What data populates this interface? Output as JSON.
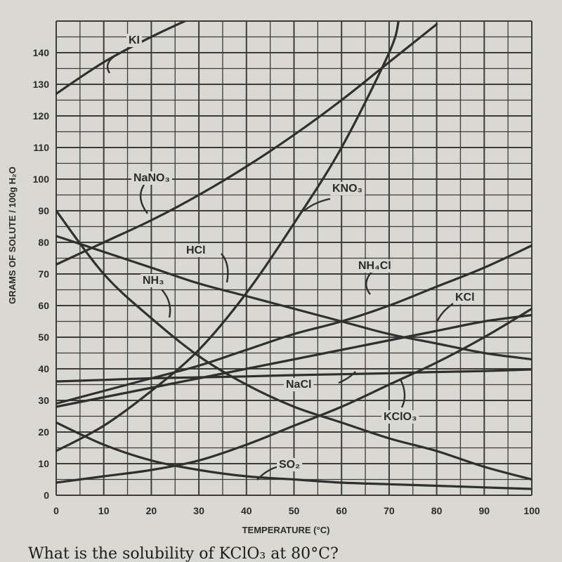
{
  "chart_data": {
    "type": "line",
    "title": "",
    "xlabel": "TEMPERATURE (°C)",
    "ylabel": "GRAMS OF SOLUTE / 100g H₂O",
    "xlim": [
      0,
      100
    ],
    "ylim": [
      0,
      150
    ],
    "grid": true,
    "x_ticks": [
      "0",
      "10",
      "20",
      "30",
      "40",
      "50",
      "60",
      "70",
      "80",
      "90",
      "100"
    ],
    "y_ticks": [
      "0",
      "10",
      "20",
      "30",
      "40",
      "50",
      "60",
      "70",
      "80",
      "90",
      "100",
      "110",
      "120",
      "130",
      "140"
    ],
    "series": [
      {
        "name": "KI",
        "x": [
          0,
          10,
          20,
          30
        ],
        "y": [
          127,
          137,
          145,
          152
        ]
      },
      {
        "name": "NaNO3",
        "x": [
          0,
          10,
          20,
          30,
          40,
          50,
          60,
          70,
          80
        ],
        "y": [
          73,
          80,
          87,
          95,
          104,
          114,
          125,
          137,
          149
        ]
      },
      {
        "name": "KNO3",
        "x": [
          0,
          10,
          20,
          30,
          40,
          50,
          60,
          70,
          72
        ],
        "y": [
          14,
          22,
          33,
          46,
          64,
          86,
          110,
          140,
          150
        ]
      },
      {
        "name": "HCl",
        "x": [
          0,
          10,
          20,
          30,
          40,
          50,
          60,
          70,
          80,
          90,
          100
        ],
        "y": [
          82,
          77,
          72,
          67,
          63,
          59,
          55,
          51,
          48,
          45,
          43
        ]
      },
      {
        "name": "NH4Cl",
        "x": [
          0,
          10,
          20,
          30,
          40,
          50,
          60,
          70,
          80,
          90,
          100
        ],
        "y": [
          29,
          33,
          37,
          41,
          46,
          51,
          55,
          60,
          66,
          72,
          79
        ]
      },
      {
        "name": "NH3",
        "x": [
          0,
          10,
          20,
          30,
          40,
          50,
          60,
          70,
          80,
          90,
          100
        ],
        "y": [
          90,
          70,
          56,
          44,
          35,
          28,
          23,
          18,
          14,
          9,
          5
        ]
      },
      {
        "name": "KCl",
        "x": [
          0,
          10,
          20,
          30,
          40,
          50,
          60,
          70,
          80,
          90,
          100
        ],
        "y": [
          28,
          31,
          34,
          37,
          40,
          43,
          46,
          49,
          52,
          55,
          57
        ]
      },
      {
        "name": "NaCl",
        "x": [
          0,
          10,
          20,
          30,
          40,
          50,
          60,
          70,
          80,
          90,
          100
        ],
        "y": [
          36,
          36.5,
          37,
          37.3,
          37.6,
          38,
          38.3,
          38.6,
          39,
          39.3,
          39.8
        ]
      },
      {
        "name": "KClO3",
        "x": [
          0,
          10,
          20,
          30,
          40,
          50,
          60,
          70,
          80,
          90,
          100
        ],
        "y": [
          4,
          6,
          8,
          11,
          16,
          22,
          28,
          35,
          42,
          50,
          59
        ]
      },
      {
        "name": "SO2",
        "x": [
          0,
          10,
          20,
          30,
          40,
          50,
          60,
          70,
          80,
          90,
          100
        ],
        "y": [
          23,
          16,
          11,
          8,
          6,
          5,
          4,
          3.5,
          3,
          2.5,
          2
        ]
      }
    ]
  },
  "labels": {
    "KI": "KI",
    "NaNO3": "NaNO₃",
    "KNO3": "KNO₃",
    "HCl": "HCl",
    "NH4Cl": "NH₄Cl",
    "NH3": "NH₃",
    "KCl": "KCl",
    "NaCl": "NaCl",
    "KClO3": "KClO₃",
    "SO2": "SO₂"
  },
  "caption": "What is the solubility of KClO₃ at 80°C?",
  "colors": {
    "background": "#d9d8d3",
    "grid": "#3c3c3c",
    "curve": "#2f2f2f",
    "text": "#2a2a2a"
  }
}
